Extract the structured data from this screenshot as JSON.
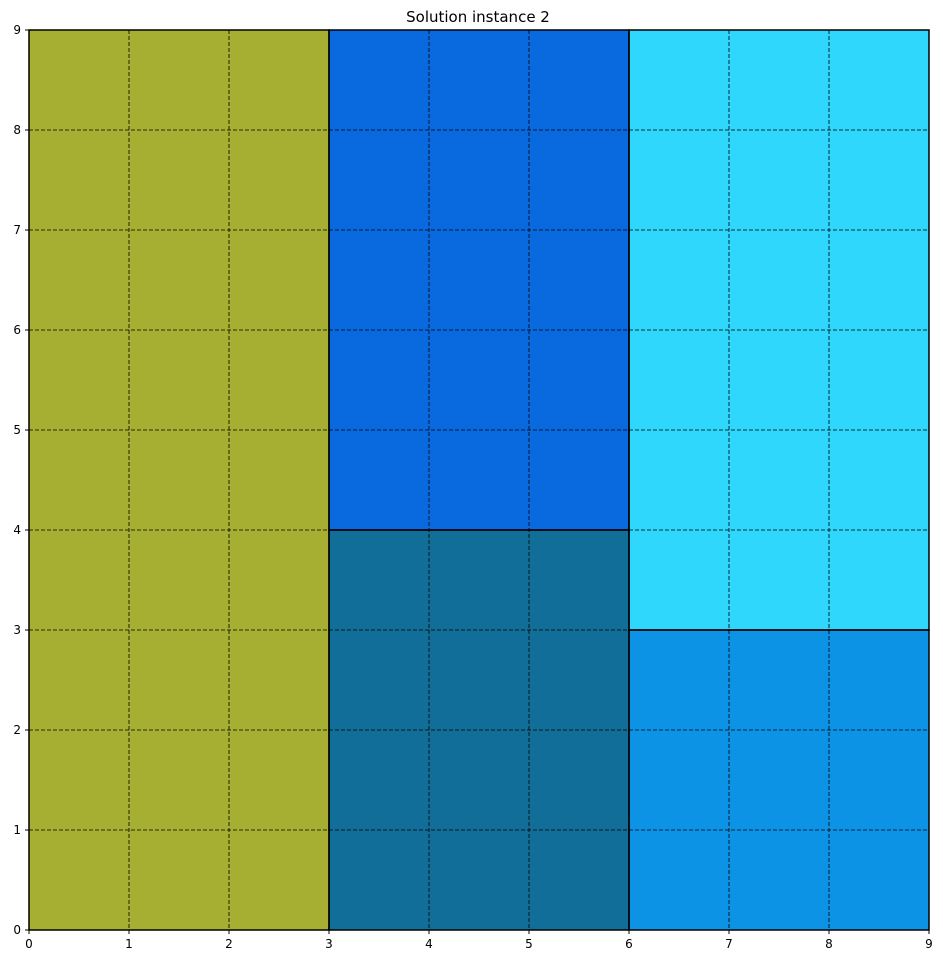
{
  "chart_data": {
    "type": "heatmap",
    "title": "Solution instance 2",
    "xlabel": "",
    "ylabel": "",
    "xlim": [
      0,
      9
    ],
    "ylim": [
      0,
      9
    ],
    "x_ticks": [
      "0",
      "1",
      "2",
      "3",
      "4",
      "5",
      "6",
      "7",
      "8",
      "9"
    ],
    "y_ticks": [
      "0",
      "1",
      "2",
      "3",
      "4",
      "5",
      "6",
      "7",
      "8",
      "9"
    ],
    "grid": true,
    "grid_style": "dashed",
    "rectangles": [
      {
        "x": 0,
        "y": 0,
        "width": 3,
        "height": 9,
        "color": "#a6af32"
      },
      {
        "x": 3,
        "y": 4,
        "width": 3,
        "height": 5,
        "color": "#0969df"
      },
      {
        "x": 3,
        "y": 0,
        "width": 3,
        "height": 4,
        "color": "#116e98"
      },
      {
        "x": 6,
        "y": 3,
        "width": 3,
        "height": 6,
        "color": "#2fd7fd"
      },
      {
        "x": 6,
        "y": 0,
        "width": 3,
        "height": 3,
        "color": "#0d93e6"
      }
    ]
  }
}
